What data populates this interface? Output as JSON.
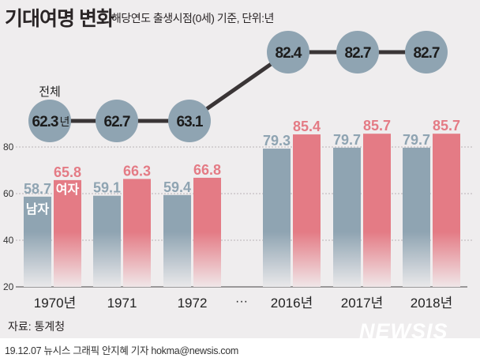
{
  "title": "기대여명 변화",
  "subtitle": "해당연도 출생시점(0세) 기준, 단위:년",
  "source": "자료: 통계청",
  "credit": "19.12.07 뉴시스 그래픽 안지혜 기자 hokma@newsis.com",
  "logo": "NEWSIS",
  "colors": {
    "male": "#8fa4b2",
    "female": "#e47b85",
    "circle": "#8fa4b2",
    "line": "#3a3536",
    "background": "#efedee"
  },
  "chart_data": {
    "type": "bar",
    "title": "기대여명 변화",
    "categories": [
      "1970년",
      "1971",
      "1972",
      "2016년",
      "2017년",
      "2018년"
    ],
    "gap_label": "···",
    "ylim": [
      20,
      90
    ],
    "yticks": [
      20,
      40,
      60,
      80
    ],
    "grid": true,
    "series": [
      {
        "name": "남자",
        "values": [
          58.7,
          59.1,
          59.4,
          79.3,
          79.7,
          79.7
        ],
        "labels": [
          "58.7",
          "59.1",
          "59.4",
          "79.3",
          "79.7",
          "79.7"
        ]
      },
      {
        "name": "여자",
        "values": [
          65.8,
          66.3,
          66.8,
          85.4,
          85.7,
          85.7
        ],
        "labels": [
          "65.8",
          "66.3",
          "66.8",
          "85.4",
          "85.7",
          "85.7"
        ]
      }
    ],
    "total": {
      "name": "전체",
      "unit": "년",
      "values": [
        62.3,
        62.7,
        63.1,
        82.4,
        82.7,
        82.7
      ],
      "labels": [
        "62.3",
        "62.7",
        "63.1",
        "82.4",
        "82.7",
        "82.7"
      ]
    }
  }
}
